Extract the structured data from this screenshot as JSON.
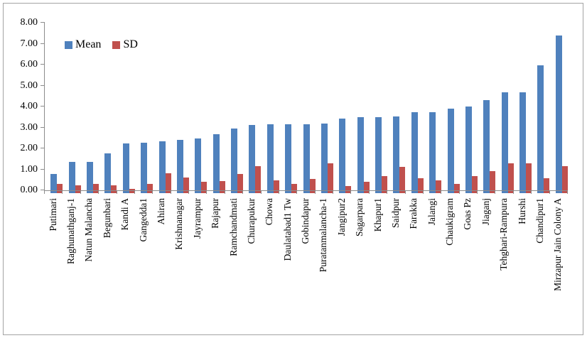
{
  "chart_data": {
    "type": "bar",
    "title": "",
    "xlabel": "",
    "ylabel": "",
    "ylim": [
      0,
      8
    ],
    "ytick_step": 1,
    "ytick_labels": [
      "0.00",
      "1.00",
      "2.00",
      "3.00",
      "4.00",
      "5.00",
      "6.00",
      "7.00",
      "8.00"
    ],
    "grid": false,
    "legend_position": "top-left-inside",
    "categories": [
      "Putimari",
      "Raghunathganj-1",
      "Natun Malancha",
      "Begunbari",
      "Kandi A",
      "Gangedda1",
      "Ahiran",
      "Krishnanagar",
      "Jayrampur",
      "Rajapur",
      "Ramchandmati",
      "Churapukur",
      "Chowa",
      "Daulatabad1 Tw",
      "Gobindapur",
      "Puratanmalancha-1",
      "Jangipur2",
      "Sagarpara",
      "Khapur1",
      "Saidpur",
      "Farakka",
      "Jalangi",
      "Chaukigram",
      "Goas Pz",
      "Jiaganj",
      "Tehghari-Rampura",
      "Hurshi",
      "Chandipur1",
      "Mirzapur Jain Colony A"
    ],
    "series": [
      {
        "name": "Mean",
        "color": "#4f81bd",
        "values": [
          0.92,
          1.5,
          1.49,
          1.9,
          2.39,
          2.42,
          2.48,
          2.53,
          2.62,
          2.81,
          3.1,
          3.24,
          3.28,
          3.3,
          3.3,
          3.33,
          3.55,
          3.64,
          3.64,
          3.67,
          3.87,
          3.87,
          4.04,
          4.13,
          4.43,
          4.83,
          4.83,
          6.1,
          7.52
        ]
      },
      {
        "name": "SD",
        "color": "#c0504d",
        "values": [
          0.44,
          0.37,
          0.44,
          0.36,
          0.22,
          0.44,
          0.96,
          0.75,
          0.54,
          0.58,
          0.91,
          1.29,
          0.6,
          0.44,
          0.69,
          1.43,
          0.35,
          0.54,
          0.8,
          1.24,
          0.73,
          0.6,
          0.45,
          0.8,
          1.05,
          1.44,
          1.44,
          0.73,
          1.28
        ]
      }
    ],
    "axis_color": "#8c8c8c",
    "text_color": "#000000",
    "frame_border_color": "#a3a3a3",
    "background_color": "#ffffff"
  }
}
